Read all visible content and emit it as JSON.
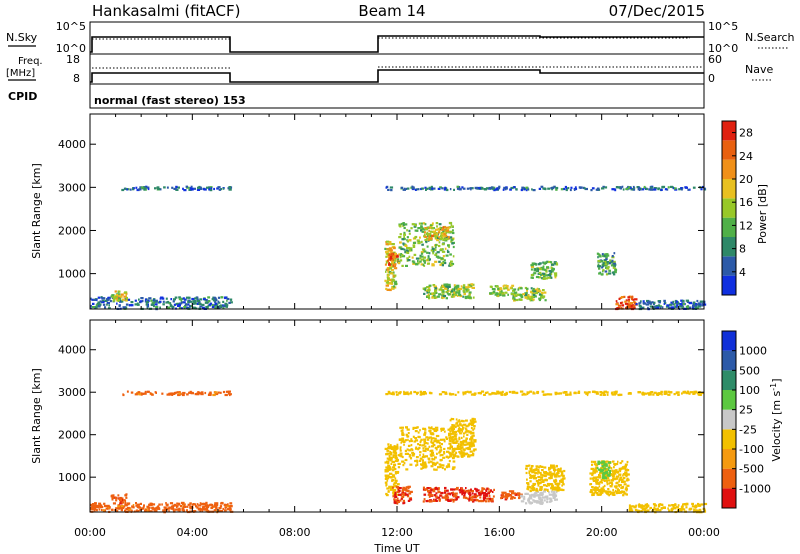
{
  "header": {
    "station": "Hankasalmi (fitACF)",
    "beam": "Beam 14",
    "date": "07/Dec/2015"
  },
  "mode": "normal (fast stereo) 153",
  "noise_panel": {
    "left_label": "N.Sky",
    "left_ticks": [
      "10^5",
      "10^0"
    ],
    "right_ticks": [
      "10^5",
      "10^0"
    ],
    "right_label": "N.Search"
  },
  "freq_panel": {
    "left_label_1": "Freq.",
    "left_label_2": "[MHz]",
    "left_ticks": [
      "18",
      "8"
    ],
    "right_ticks": [
      "60",
      "0"
    ],
    "right_label": "Nave"
  },
  "cpid_label": "CPID",
  "colors": {
    "power_scale": [
      "#1030e0",
      "#2c5aa8",
      "#2e8868",
      "#50b048",
      "#98c828",
      "#e8c020",
      "#f09018",
      "#e86010",
      "#e02010"
    ],
    "velocity_scale": [
      "#e01010",
      "#ee6010",
      "#f59a10",
      "#f2c000",
      "#c8c8c8",
      "#5cc840",
      "#2e8c68",
      "#2c5aa8",
      "#1030d8"
    ]
  },
  "chart_data": [
    {
      "type": "heatmap",
      "title": "",
      "xlabel": "Time UT",
      "ylabel": "Slant Range [km]",
      "x_ticks": [
        "00:00",
        "04:00",
        "08:00",
        "12:00",
        "16:00",
        "20:00",
        "00:00"
      ],
      "y_ticks": [
        "1000",
        "2000",
        "3000",
        "4000"
      ],
      "xlim_hours": [
        0,
        24
      ],
      "ylim_km": [
        180,
        4700
      ],
      "colorbar": {
        "label": "Power [dB]",
        "ticks": [
          "4",
          "8",
          "12",
          "16",
          "20",
          "24",
          "28"
        ],
        "range": [
          0,
          30
        ]
      },
      "regions": [
        {
          "t": [
            0.0,
            5.5
          ],
          "r": [
            200,
            480
          ],
          "v": 6
        },
        {
          "t": [
            0.8,
            1.4
          ],
          "r": [
            380,
            620
          ],
          "v": 17
        },
        {
          "t": [
            1.2,
            5.5
          ],
          "r": [
            2960,
            3040
          ],
          "v": 6
        },
        {
          "t": [
            11.5,
            11.9
          ],
          "r": [
            600,
            1800
          ],
          "v": 17
        },
        {
          "t": [
            11.6,
            12.0
          ],
          "r": [
            1200,
            1500
          ],
          "v": 24
        },
        {
          "t": [
            12.0,
            14.2
          ],
          "r": [
            1200,
            2200
          ],
          "v": 13
        },
        {
          "t": [
            13.0,
            14.0
          ],
          "r": [
            1800,
            2100
          ],
          "v": 19
        },
        {
          "t": [
            13.0,
            15.0
          ],
          "r": [
            450,
            780
          ],
          "v": 14
        },
        {
          "t": [
            15.6,
            16.5
          ],
          "r": [
            500,
            750
          ],
          "v": 15
        },
        {
          "t": [
            16.5,
            17.8
          ],
          "r": [
            400,
            700
          ],
          "v": 14
        },
        {
          "t": [
            17.2,
            18.2
          ],
          "r": [
            900,
            1300
          ],
          "v": 12
        },
        {
          "t": [
            19.8,
            20.5
          ],
          "r": [
            1000,
            1500
          ],
          "v": 10
        },
        {
          "t": [
            20.5,
            21.3
          ],
          "r": [
            200,
            500
          ],
          "v": 26
        },
        {
          "t": [
            21.3,
            24.0
          ],
          "r": [
            200,
            400
          ],
          "v": 6
        },
        {
          "t": [
            11.5,
            24.0
          ],
          "r": [
            2960,
            3040
          ],
          "v": 6
        }
      ]
    },
    {
      "type": "heatmap",
      "title": "",
      "xlabel": "Time UT",
      "ylabel": "Slant Range [km]",
      "x_ticks": [
        "00:00",
        "04:00",
        "08:00",
        "12:00",
        "16:00",
        "20:00",
        "00:00"
      ],
      "y_ticks": [
        "1000",
        "2000",
        "3000",
        "4000"
      ],
      "xlim_hours": [
        0,
        24
      ],
      "ylim_km": [
        180,
        4700
      ],
      "colorbar": {
        "label": "Velocity [m s^-1]",
        "ticks": [
          "1000",
          "500",
          "100",
          "25",
          "-25",
          "-100",
          "-500",
          "-1000"
        ],
        "range": [
          -1000,
          1000
        ]
      },
      "regions": [
        {
          "t": [
            0.0,
            5.5
          ],
          "r": [
            200,
            420
          ],
          "v": -150
        },
        {
          "t": [
            0.8,
            1.4
          ],
          "r": [
            400,
            620
          ],
          "v": -400
        },
        {
          "t": [
            1.2,
            5.5
          ],
          "r": [
            2960,
            3040
          ],
          "v": -150
        },
        {
          "t": [
            11.5,
            12.0
          ],
          "r": [
            600,
            1800
          ],
          "v": 0
        },
        {
          "t": [
            12.0,
            14.2
          ],
          "r": [
            1200,
            2200
          ],
          "v": 0
        },
        {
          "t": [
            14.0,
            15.0
          ],
          "r": [
            1500,
            2400
          ],
          "v": 0
        },
        {
          "t": [
            11.8,
            12.5
          ],
          "r": [
            400,
            800
          ],
          "v": -500
        },
        {
          "t": [
            13.0,
            15.8
          ],
          "r": [
            450,
            780
          ],
          "v": -500
        },
        {
          "t": [
            16.0,
            16.8
          ],
          "r": [
            500,
            700
          ],
          "v": -400
        },
        {
          "t": [
            16.8,
            18.2
          ],
          "r": [
            400,
            700
          ],
          "v": 60
        },
        {
          "t": [
            17.0,
            18.5
          ],
          "r": [
            700,
            1300
          ],
          "v": 0
        },
        {
          "t": [
            19.5,
            21.0
          ],
          "r": [
            600,
            1400
          ],
          "v": 0
        },
        {
          "t": [
            19.8,
            20.3
          ],
          "r": [
            1000,
            1400
          ],
          "v": 200
        },
        {
          "t": [
            21.0,
            24.0
          ],
          "r": [
            200,
            400
          ],
          "v": 0
        },
        {
          "t": [
            11.5,
            24.0
          ],
          "r": [
            2960,
            3040
          ],
          "v": 0
        }
      ]
    }
  ]
}
